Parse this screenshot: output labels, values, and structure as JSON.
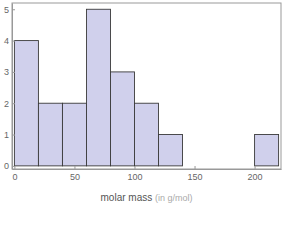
{
  "chart_data": {
    "type": "histogram",
    "x_label": "molar mass (in g/mol)",
    "bins": [
      0,
      20,
      40,
      60,
      80,
      100,
      120,
      140,
      160,
      180,
      200,
      220
    ],
    "counts": [
      4,
      2,
      2,
      5,
      3,
      2,
      1,
      0,
      0,
      0,
      1
    ],
    "color": "#d0d0ec",
    "xlim": [
      -2,
      222
    ],
    "xticks": [
      0,
      50,
      100,
      150,
      200
    ],
    "ylim": [
      -0.1,
      5.2
    ],
    "yticks": [
      0,
      1,
      2,
      3,
      4,
      5
    ],
    "grid": false
  }
}
